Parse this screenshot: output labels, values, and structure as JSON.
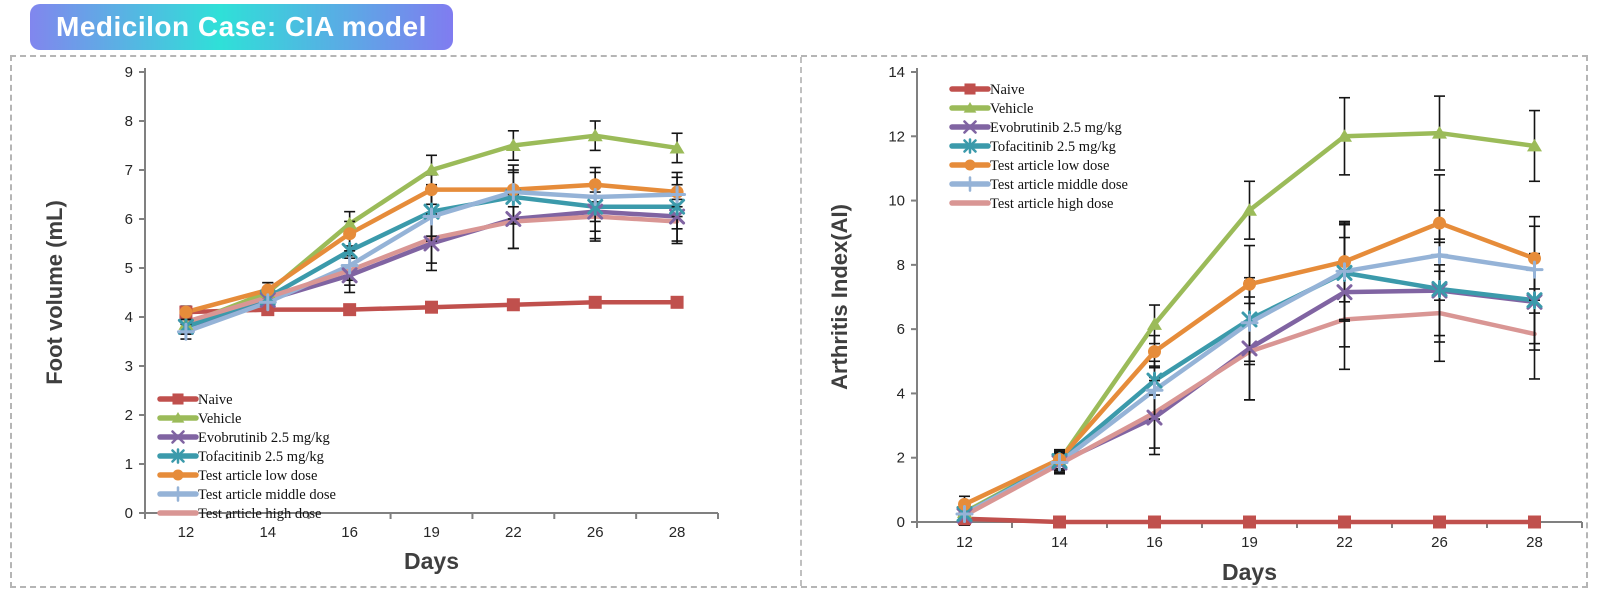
{
  "banner": {
    "text": "Medicilon Case: CIA model",
    "text_color": "#ffffff",
    "gradient": [
      "#8186ee",
      "#2fe0d8",
      "#807cf0"
    ]
  },
  "chart_data": [
    {
      "type": "line",
      "title": "",
      "xlabel": "Days",
      "ylabel": "Foot volume (mL)",
      "ylim": [
        0,
        9
      ],
      "ytick_step": 1,
      "grid": false,
      "legend_position": "bottom-left",
      "categories": [
        "12",
        "14",
        "16",
        "19",
        "22",
        "26",
        "28"
      ],
      "series": [
        {
          "name": "Naive",
          "color": "#C0504D",
          "marker": "square",
          "values": [
            4.1,
            4.15,
            4.15,
            4.2,
            4.25,
            4.3,
            4.3
          ],
          "errors": [
            0.12,
            0.1,
            0.08,
            0.08,
            0.08,
            0.08,
            0.08
          ]
        },
        {
          "name": "Vehicle",
          "color": "#9BBB59",
          "marker": "triangle",
          "values": [
            3.85,
            4.5,
            5.9,
            7.0,
            7.5,
            7.7,
            7.45
          ],
          "errors": [
            0.15,
            0.2,
            0.25,
            0.3,
            0.3,
            0.3,
            0.3
          ]
        },
        {
          "name": "Evobrutinib 2.5 mg/kg",
          "color": "#8064A2",
          "marker": "x",
          "values": [
            3.8,
            4.35,
            4.85,
            5.5,
            6.0,
            6.15,
            6.05
          ],
          "errors": [
            0.15,
            0.15,
            0.35,
            0.55,
            0.6,
            0.55,
            0.5
          ]
        },
        {
          "name": "Tofacitinib 2.5 mg/kg",
          "color": "#3B9AAB",
          "marker": "asterisk",
          "values": [
            3.8,
            4.4,
            5.35,
            6.15,
            6.45,
            6.25,
            6.25
          ],
          "errors": [
            0.15,
            0.15,
            0.3,
            0.5,
            0.55,
            0.5,
            0.45
          ]
        },
        {
          "name": "Test article low dose",
          "color": "#E68C3A",
          "marker": "circle",
          "values": [
            4.1,
            4.55,
            5.7,
            6.6,
            6.6,
            6.7,
            6.55
          ],
          "errors": [
            0.12,
            0.15,
            0.25,
            0.3,
            0.35,
            0.35,
            0.3
          ]
        },
        {
          "name": "Test article middle dose",
          "color": "#95B3D7",
          "marker": "plus",
          "values": [
            3.7,
            4.3,
            5.05,
            6.05,
            6.55,
            6.45,
            6.5
          ],
          "errors": [
            0.15,
            0.15,
            0.3,
            0.5,
            0.55,
            0.5,
            0.45
          ]
        },
        {
          "name": "Test article high dose",
          "color": "#D99694",
          "marker": "dash",
          "values": [
            3.9,
            4.4,
            4.95,
            5.6,
            5.95,
            6.05,
            5.95
          ],
          "errors": [
            0.12,
            0.15,
            0.3,
            0.5,
            0.55,
            0.5,
            0.45
          ]
        }
      ]
    },
    {
      "type": "line",
      "title": "",
      "xlabel": "Days",
      "ylabel": "Arthritis Index(AI)",
      "ylim": [
        0,
        14
      ],
      "ytick_step": 2,
      "grid": false,
      "legend_position": "top-left",
      "categories": [
        "12",
        "14",
        "16",
        "19",
        "22",
        "26",
        "28"
      ],
      "series": [
        {
          "name": "Naive",
          "color": "#C0504D",
          "marker": "square",
          "values": [
            0.1,
            0,
            0,
            0,
            0,
            0,
            0
          ],
          "errors": [
            0.2,
            0.15,
            0.05,
            0.05,
            0.05,
            0.05,
            0.05
          ]
        },
        {
          "name": "Vehicle",
          "color": "#9BBB59",
          "marker": "triangle",
          "values": [
            0.3,
            1.9,
            6.15,
            9.7,
            12.0,
            12.1,
            11.7
          ],
          "errors": [
            0.15,
            0.25,
            0.6,
            0.9,
            1.2,
            1.15,
            1.1
          ]
        },
        {
          "name": "Evobrutinib 2.5 mg/kg",
          "color": "#8064A2",
          "marker": "x",
          "values": [
            0.2,
            1.85,
            3.25,
            5.4,
            7.15,
            7.2,
            6.85
          ],
          "errors": [
            0.15,
            0.3,
            1.15,
            1.6,
            1.7,
            1.6,
            1.5
          ]
        },
        {
          "name": "Tofacitinib 2.5 mg/kg",
          "color": "#3B9AAB",
          "marker": "asterisk",
          "values": [
            0.25,
            1.9,
            4.4,
            6.3,
            7.75,
            7.25,
            6.9
          ],
          "errors": [
            0.15,
            0.3,
            0.45,
            1.3,
            1.5,
            1.45,
            1.35
          ]
        },
        {
          "name": "Test article low dose",
          "color": "#E68C3A",
          "marker": "circle",
          "values": [
            0.55,
            1.95,
            5.3,
            7.4,
            8.1,
            9.3,
            8.2
          ],
          "errors": [
            0.25,
            0.3,
            0.5,
            1.2,
            1.25,
            1.5,
            1.3
          ]
        },
        {
          "name": "Test article middle dose",
          "color": "#95B3D7",
          "marker": "plus",
          "values": [
            0.25,
            1.85,
            4.1,
            6.2,
            7.8,
            8.3,
            7.85
          ],
          "errors": [
            0.15,
            0.3,
            0.9,
            1.3,
            1.5,
            1.4,
            1.35
          ]
        },
        {
          "name": "Test article high dose",
          "color": "#D99694",
          "marker": "dash",
          "values": [
            0.2,
            1.8,
            3.4,
            5.3,
            6.3,
            6.5,
            5.85
          ],
          "errors": [
            0.15,
            0.3,
            1.1,
            1.5,
            1.55,
            1.5,
            1.4
          ]
        }
      ]
    }
  ]
}
